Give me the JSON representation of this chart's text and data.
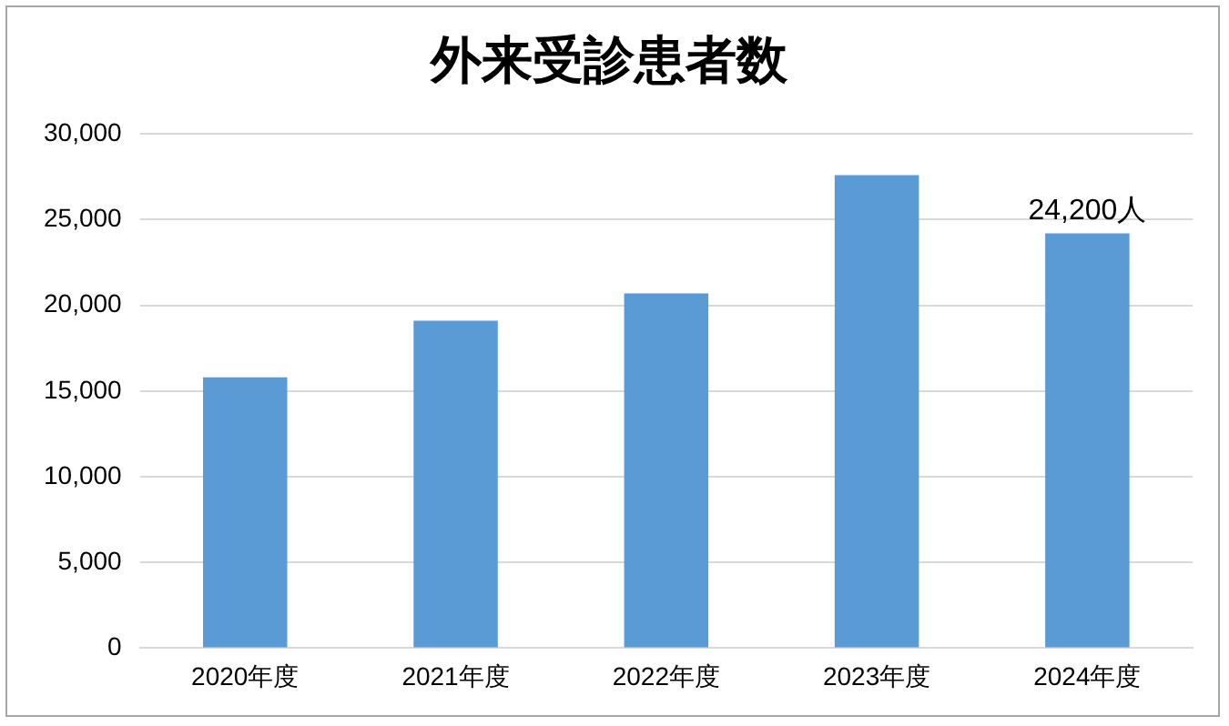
{
  "chart_data": {
    "type": "bar",
    "title": "外来受診患者数",
    "categories": [
      "2020年度",
      "2021年度",
      "2022年度",
      "2023年度",
      "2024年度"
    ],
    "values": [
      15800,
      19100,
      20700,
      27600,
      24200
    ],
    "value_labels": [
      null,
      null,
      null,
      null,
      "24,200人"
    ],
    "color": "#5b9bd5",
    "ylim": [
      0,
      30000
    ],
    "yticks": [
      0,
      {
        "value": 5000,
        "label": "5,000"
      },
      {
        "value": 10000,
        "label": "10,000"
      },
      {
        "value": 15000,
        "label": "15,000"
      },
      {
        "value": 20000,
        "label": "20,000"
      },
      {
        "value": 25000,
        "label": "25,000"
      },
      {
        "value": 30000,
        "label": "30,000"
      }
    ],
    "grid": "y"
  }
}
